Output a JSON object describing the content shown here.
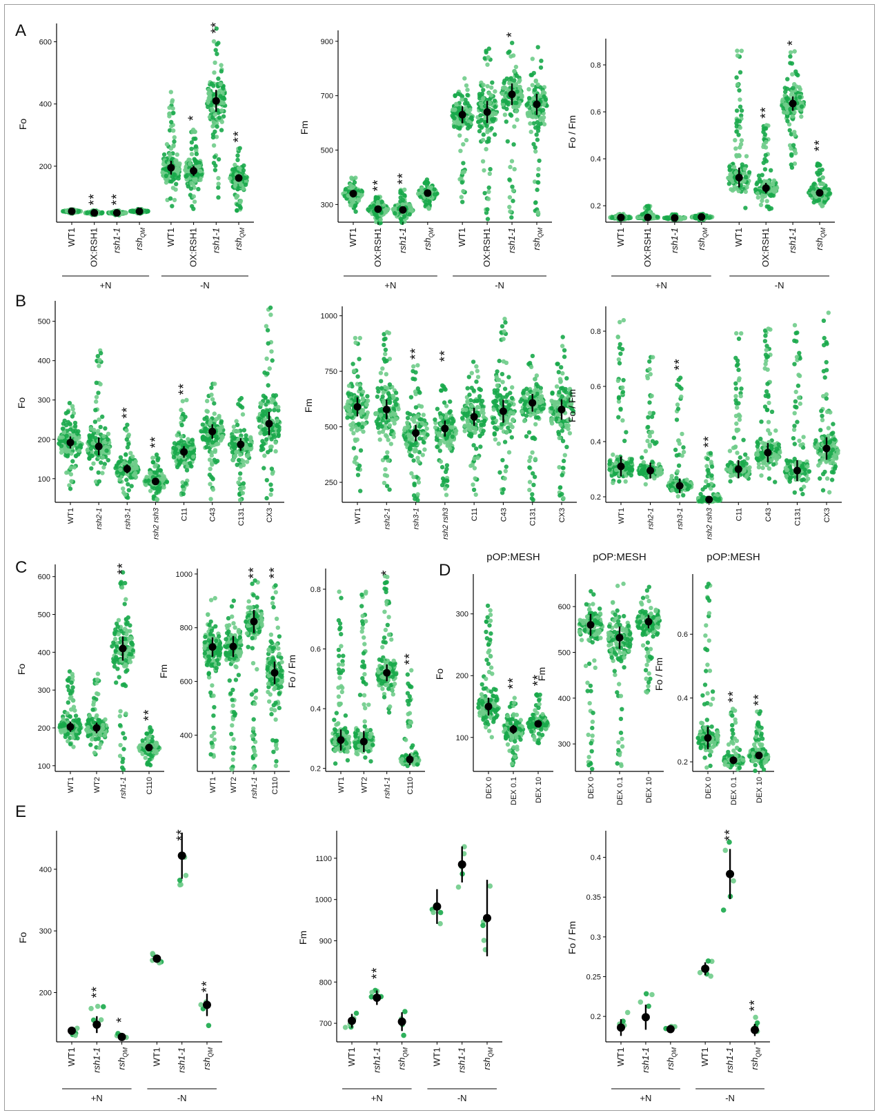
{
  "figure": {
    "colors": {
      "dot_dark": "#18a84a",
      "dot_light": "#6fcc8a",
      "mean": "#000000",
      "axis": "#000000",
      "frame": "#9a9a9a"
    },
    "panels": [
      {
        "label": "A",
        "row": 0,
        "charts": [
          0,
          1,
          2
        ]
      },
      {
        "label": "B",
        "row": 1,
        "charts": [
          3,
          4,
          5
        ]
      },
      {
        "label": "C",
        "row": 2,
        "charts": [
          6,
          7,
          8
        ]
      },
      {
        "label": "D",
        "row": 2,
        "charts": [
          9,
          10,
          11
        ]
      },
      {
        "label": "E",
        "row": 3,
        "charts": [
          12,
          13,
          14
        ]
      }
    ]
  },
  "chart_data": [
    {
      "panel": "A",
      "type": "scatter",
      "ylabel": "Fo",
      "yticks": [
        200,
        400,
        600
      ],
      "ylim": [
        20,
        650
      ],
      "categories": [
        "WT1",
        "OX:RSH1",
        "rsh1-1",
        "rshQM",
        "WT1",
        "OX:RSH1",
        "rsh1-1",
        "rshQM"
      ],
      "italic": [
        false,
        false,
        true,
        true,
        false,
        false,
        true,
        true
      ],
      "means": [
        55,
        50,
        50,
        55,
        195,
        185,
        410,
        162
      ],
      "spread": [
        [
          48,
          62
        ],
        [
          43,
          58
        ],
        [
          42,
          58
        ],
        [
          48,
          62
        ],
        [
          70,
          440
        ],
        [
          50,
          320
        ],
        [
          60,
          650
        ],
        [
          55,
          260
        ]
      ],
      "sig": [
        "",
        "**",
        "**",
        "",
        "",
        "*",
        "**",
        "**"
      ],
      "groups": [
        {
          "label": "+N",
          "from": 0,
          "to": 3
        },
        {
          "label": "-N",
          "from": 4,
          "to": 7
        }
      ]
    },
    {
      "panel": "A",
      "type": "scatter",
      "ylabel": "Fm",
      "yticks": [
        300,
        500,
        700,
        900
      ],
      "ylim": [
        235,
        930
      ],
      "categories": [
        "WT1",
        "OX:RSH1",
        "rsh1-1",
        "rshQM",
        "WT1",
        "OX:RSH1",
        "rsh1-1",
        "rshQM"
      ],
      "italic": [
        false,
        false,
        true,
        true,
        false,
        false,
        true,
        true
      ],
      "means": [
        340,
        283,
        280,
        342,
        630,
        640,
        705,
        668
      ],
      "spread": [
        [
          270,
          400
        ],
        [
          230,
          330
        ],
        [
          230,
          355
        ],
        [
          280,
          400
        ],
        [
          270,
          790
        ],
        [
          240,
          920
        ],
        [
          240,
          905
        ],
        [
          255,
          900
        ]
      ],
      "sig": [
        "",
        "**",
        "**",
        "",
        "",
        "",
        "*",
        ""
      ],
      "groups": [
        {
          "label": "+N",
          "from": 0,
          "to": 3
        },
        {
          "label": "-N",
          "from": 4,
          "to": 7
        }
      ]
    },
    {
      "panel": "A",
      "type": "scatter",
      "ylabel": "Fo / Fm",
      "yticks": [
        0.2,
        0.4,
        0.6,
        0.8
      ],
      "ylim": [
        0.13,
        0.9
      ],
      "categories": [
        "WT1",
        "OX:RSH1",
        "rsh1-1",
        "rshQM",
        "WT1",
        "OX:RSH1",
        "rsh1-1",
        "rshQM"
      ],
      "italic": [
        false,
        false,
        true,
        true,
        false,
        false,
        true,
        true
      ],
      "means": [
        0.15,
        0.15,
        0.148,
        0.152,
        0.32,
        0.275,
        0.635,
        0.255
      ],
      "spread": [
        [
          0.14,
          0.165
        ],
        [
          0.14,
          0.2
        ],
        [
          0.14,
          0.165
        ],
        [
          0.14,
          0.165
        ],
        [
          0.17,
          0.87
        ],
        [
          0.18,
          0.55
        ],
        [
          0.35,
          0.86
        ],
        [
          0.19,
          0.41
        ]
      ],
      "sig": [
        "",
        "",
        "",
        "",
        "",
        "**",
        "*",
        "**"
      ],
      "groups": [
        {
          "label": "+N",
          "from": 0,
          "to": 3
        },
        {
          "label": "-N",
          "from": 4,
          "to": 7
        }
      ]
    },
    {
      "panel": "B",
      "type": "scatter",
      "ylabel": "Fo",
      "yticks": [
        100,
        200,
        300,
        400,
        500
      ],
      "ylim": [
        40,
        545
      ],
      "categories": [
        "WT1",
        "rsh2-1",
        "rsh3-1",
        "rsh2 rsh3",
        "C11",
        "C43",
        "C131",
        "CX3"
      ],
      "italic": [
        false,
        true,
        true,
        true,
        false,
        false,
        false,
        false
      ],
      "means": [
        192,
        182,
        125,
        93,
        168,
        220,
        187,
        240
      ],
      "spread": [
        [
          55,
          310
        ],
        [
          70,
          445
        ],
        [
          50,
          240
        ],
        [
          45,
          165
        ],
        [
          55,
          300
        ],
        [
          45,
          350
        ],
        [
          45,
          310
        ],
        [
          45,
          540
        ]
      ],
      "sig": [
        "",
        "",
        "**",
        "**",
        "**",
        "",
        "",
        ""
      ]
    },
    {
      "panel": "B",
      "type": "scatter",
      "ylabel": "Fm",
      "yticks": [
        250,
        500,
        750,
        1000
      ],
      "ylim": [
        160,
        1030
      ],
      "categories": [
        "WT1",
        "rsh2-1",
        "rsh3-1",
        "rsh2 rsh3",
        "C11",
        "C43",
        "C131",
        "CX3"
      ],
      "italic": [
        false,
        true,
        true,
        true,
        false,
        false,
        false,
        false
      ],
      "means": [
        590,
        578,
        472,
        492,
        545,
        570,
        608,
        578
      ],
      "spread": [
        [
          190,
          910
        ],
        [
          200,
          940
        ],
        [
          160,
          780
        ],
        [
          170,
          770
        ],
        [
          165,
          840
        ],
        [
          165,
          1030
        ],
        [
          165,
          830
        ],
        [
          165,
          930
        ]
      ],
      "sig": [
        "",
        "",
        "**",
        "**",
        "",
        "",
        "",
        ""
      ]
    },
    {
      "panel": "B",
      "type": "scatter",
      "ylabel": "Fo / Fm",
      "yticks": [
        0.2,
        0.4,
        0.6,
        0.8
      ],
      "ylim": [
        0.18,
        0.88
      ],
      "categories": [
        "WT1",
        "rsh2-1",
        "rsh3-1",
        "rsh2 rsh3",
        "C11",
        "C43",
        "C131",
        "CX3"
      ],
      "italic": [
        false,
        true,
        true,
        true,
        false,
        false,
        false,
        false
      ],
      "means": [
        0.31,
        0.295,
        0.24,
        0.19,
        0.3,
        0.36,
        0.295,
        0.375
      ],
      "spread": [
        [
          0.24,
          0.84
        ],
        [
          0.24,
          0.72
        ],
        [
          0.2,
          0.64
        ],
        [
          0.18,
          0.36
        ],
        [
          0.25,
          0.8
        ],
        [
          0.24,
          0.82
        ],
        [
          0.2,
          0.83
        ],
        [
          0.19,
          0.87
        ]
      ],
      "sig": [
        "",
        "",
        "**",
        "**",
        "",
        "",
        "",
        ""
      ]
    },
    {
      "panel": "C",
      "type": "scatter",
      "ylabel": "Fo",
      "yticks": [
        100,
        200,
        300,
        400,
        500,
        600
      ],
      "ylim": [
        85,
        625
      ],
      "categories": [
        "WT1",
        "WT2",
        "rsh1-1",
        "C110"
      ],
      "italic": [
        false,
        false,
        true,
        false
      ],
      "means": [
        203,
        200,
        410,
        148
      ],
      "spread": [
        [
          140,
          365
        ],
        [
          120,
          355
        ],
        [
          85,
          620
        ],
        [
          100,
          205
        ]
      ],
      "sig": [
        "",
        "",
        "**",
        "**"
      ]
    },
    {
      "panel": "C",
      "type": "scatter",
      "ylabel": "Fm",
      "yticks": [
        400,
        600,
        800,
        1000
      ],
      "ylim": [
        265,
        1010
      ],
      "categories": [
        "WT1",
        "WT2",
        "rsh1-1",
        "C110"
      ],
      "italic": [
        false,
        false,
        true,
        false
      ],
      "means": [
        728,
        730,
        823,
        632
      ],
      "spread": [
        [
          310,
          910
        ],
        [
          265,
          920
        ],
        [
          275,
          990
        ],
        [
          265,
          965
        ]
      ],
      "sig": [
        "",
        "",
        "**",
        "**"
      ]
    },
    {
      "panel": "C",
      "type": "scatter",
      "ylabel": "Fo / Fm",
      "yticks": [
        0.2,
        0.4,
        0.6,
        0.8
      ],
      "ylim": [
        0.19,
        0.86
      ],
      "categories": [
        "WT1",
        "WT2",
        "rsh1-1",
        "C110"
      ],
      "italic": [
        false,
        false,
        true,
        false
      ],
      "means": [
        0.295,
        0.29,
        0.52,
        0.23
      ],
      "spread": [
        [
          0.21,
          0.8
        ],
        [
          0.21,
          0.8
        ],
        [
          0.38,
          0.85
        ],
        [
          0.2,
          0.53
        ]
      ],
      "sig": [
        "",
        "",
        "*",
        "**"
      ]
    },
    {
      "panel": "D",
      "type": "scatter",
      "title": "pOP:MESH",
      "ylabel": "Fo",
      "yticks": [
        100,
        200,
        300
      ],
      "ylim": [
        45,
        360
      ],
      "categories": [
        "DEX 0",
        "DEX 0.1",
        "DEX 10"
      ],
      "italic": [
        false,
        false,
        false
      ],
      "means": [
        150,
        113,
        122
      ],
      "spread": [
        [
          90,
          330
        ],
        [
          50,
          170
        ],
        [
          90,
          175
        ]
      ],
      "sig": [
        "",
        "**",
        "**"
      ]
    },
    {
      "panel": "D",
      "type": "scatter",
      "title": "pOP:MESH",
      "ylabel": "Fm",
      "yticks": [
        300,
        400,
        500,
        600
      ],
      "ylim": [
        240,
        665
      ],
      "categories": [
        "DEX 0",
        "DEX 0.1",
        "DEX 10"
      ],
      "italic": [
        false,
        false,
        false
      ],
      "means": [
        560,
        532,
        567
      ],
      "spread": [
        [
          240,
          640
        ],
        [
          245,
          650
        ],
        [
          410,
          650
        ]
      ],
      "sig": [
        "",
        "",
        ""
      ]
    },
    {
      "panel": "D",
      "type": "scatter",
      "title": "pOP:MESH",
      "ylabel": "Fo / Fm",
      "yticks": [
        0.2,
        0.4,
        0.6
      ],
      "ylim": [
        0.17,
        0.78
      ],
      "categories": [
        "DEX 0",
        "DEX 0.1",
        "DEX 10"
      ],
      "italic": [
        false,
        false,
        false
      ],
      "means": [
        0.275,
        0.205,
        0.22
      ],
      "spread": [
        [
          0.18,
          0.77
        ],
        [
          0.17,
          0.37
        ],
        [
          0.17,
          0.36
        ]
      ],
      "sig": [
        "",
        "**",
        "**"
      ]
    },
    {
      "panel": "E",
      "type": "scatter",
      "ylabel": "Fo",
      "yticks": [
        200,
        300,
        400
      ],
      "ylim": [
        120,
        458
      ],
      "categories": [
        "WT1",
        "rsh1-1",
        "rshQM",
        "WT1",
        "rsh1-1",
        "rshQM"
      ],
      "italic": [
        false,
        true,
        true,
        false,
        true,
        true
      ],
      "means": [
        138,
        148,
        128,
        255,
        422,
        180
      ],
      "spread": [
        [
          124,
          142
        ],
        [
          144,
          183
        ],
        [
          124,
          138
        ],
        [
          246,
          265
        ],
        [
          338,
          445
        ],
        [
          140,
          192
        ]
      ],
      "sig": [
        "",
        "**",
        "*",
        "",
        "**",
        "**"
      ],
      "groups": [
        {
          "label": "+N",
          "from": 0,
          "to": 2
        },
        {
          "label": "-N",
          "from": 3,
          "to": 5
        }
      ]
    },
    {
      "panel": "E",
      "type": "scatter",
      "ylabel": "Fm",
      "yticks": [
        700,
        800,
        900,
        1000,
        1100
      ],
      "ylim": [
        655,
        1160
      ],
      "categories": [
        "WT1",
        "rsh1-1",
        "rshQM",
        "WT1",
        "rsh1-1",
        "rshQM"
      ],
      "italic": [
        false,
        true,
        true,
        false,
        true,
        true
      ],
      "means": [
        706,
        762,
        704,
        983,
        1085,
        955
      ],
      "spread": [
        [
          680,
          728
        ],
        [
          745,
          795
        ],
        [
          670,
          735
        ],
        [
          910,
          1030
        ],
        [
          1025,
          1150
        ],
        [
          785,
          1050
        ]
      ],
      "sig": [
        "",
        "**",
        "",
        "",
        "",
        ""
      ],
      "groups": [
        {
          "label": "+N",
          "from": 0,
          "to": 2
        },
        {
          "label": "-N",
          "from": 3,
          "to": 5
        }
      ]
    },
    {
      "panel": "E",
      "type": "scatter",
      "ylabel": "Fo / Fm",
      "yticks": [
        0.2,
        0.25,
        0.3,
        0.35,
        0.4
      ],
      "ylim": [
        0.168,
        0.43
      ],
      "categories": [
        "WT1",
        "rsh1-1",
        "rshQM",
        "WT1",
        "rsh1-1",
        "rshQM"
      ],
      "italic": [
        false,
        true,
        true,
        false,
        true,
        true
      ],
      "means": [
        0.186,
        0.199,
        0.184,
        0.26,
        0.379,
        0.183
      ],
      "spread": [
        [
          0.175,
          0.205
        ],
        [
          0.185,
          0.23
        ],
        [
          0.178,
          0.19
        ],
        [
          0.25,
          0.273
        ],
        [
          0.33,
          0.42
        ],
        [
          0.178,
          0.2
        ]
      ],
      "sig": [
        "",
        "",
        "",
        "",
        "**",
        "**"
      ],
      "groups": [
        {
          "label": "+N",
          "from": 0,
          "to": 2
        },
        {
          "label": "-N",
          "from": 3,
          "to": 5
        }
      ]
    }
  ]
}
